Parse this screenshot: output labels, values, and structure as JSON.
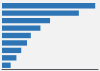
{
  "chart_data": {
    "type": "bar",
    "orientation": "horizontal",
    "values": [
      97,
      80,
      50,
      40,
      30,
      26,
      20,
      15,
      9
    ],
    "color": "#2e75b6",
    "xlim": [
      0,
      99.91
    ],
    "grid": false,
    "tick_labels": false
  }
}
